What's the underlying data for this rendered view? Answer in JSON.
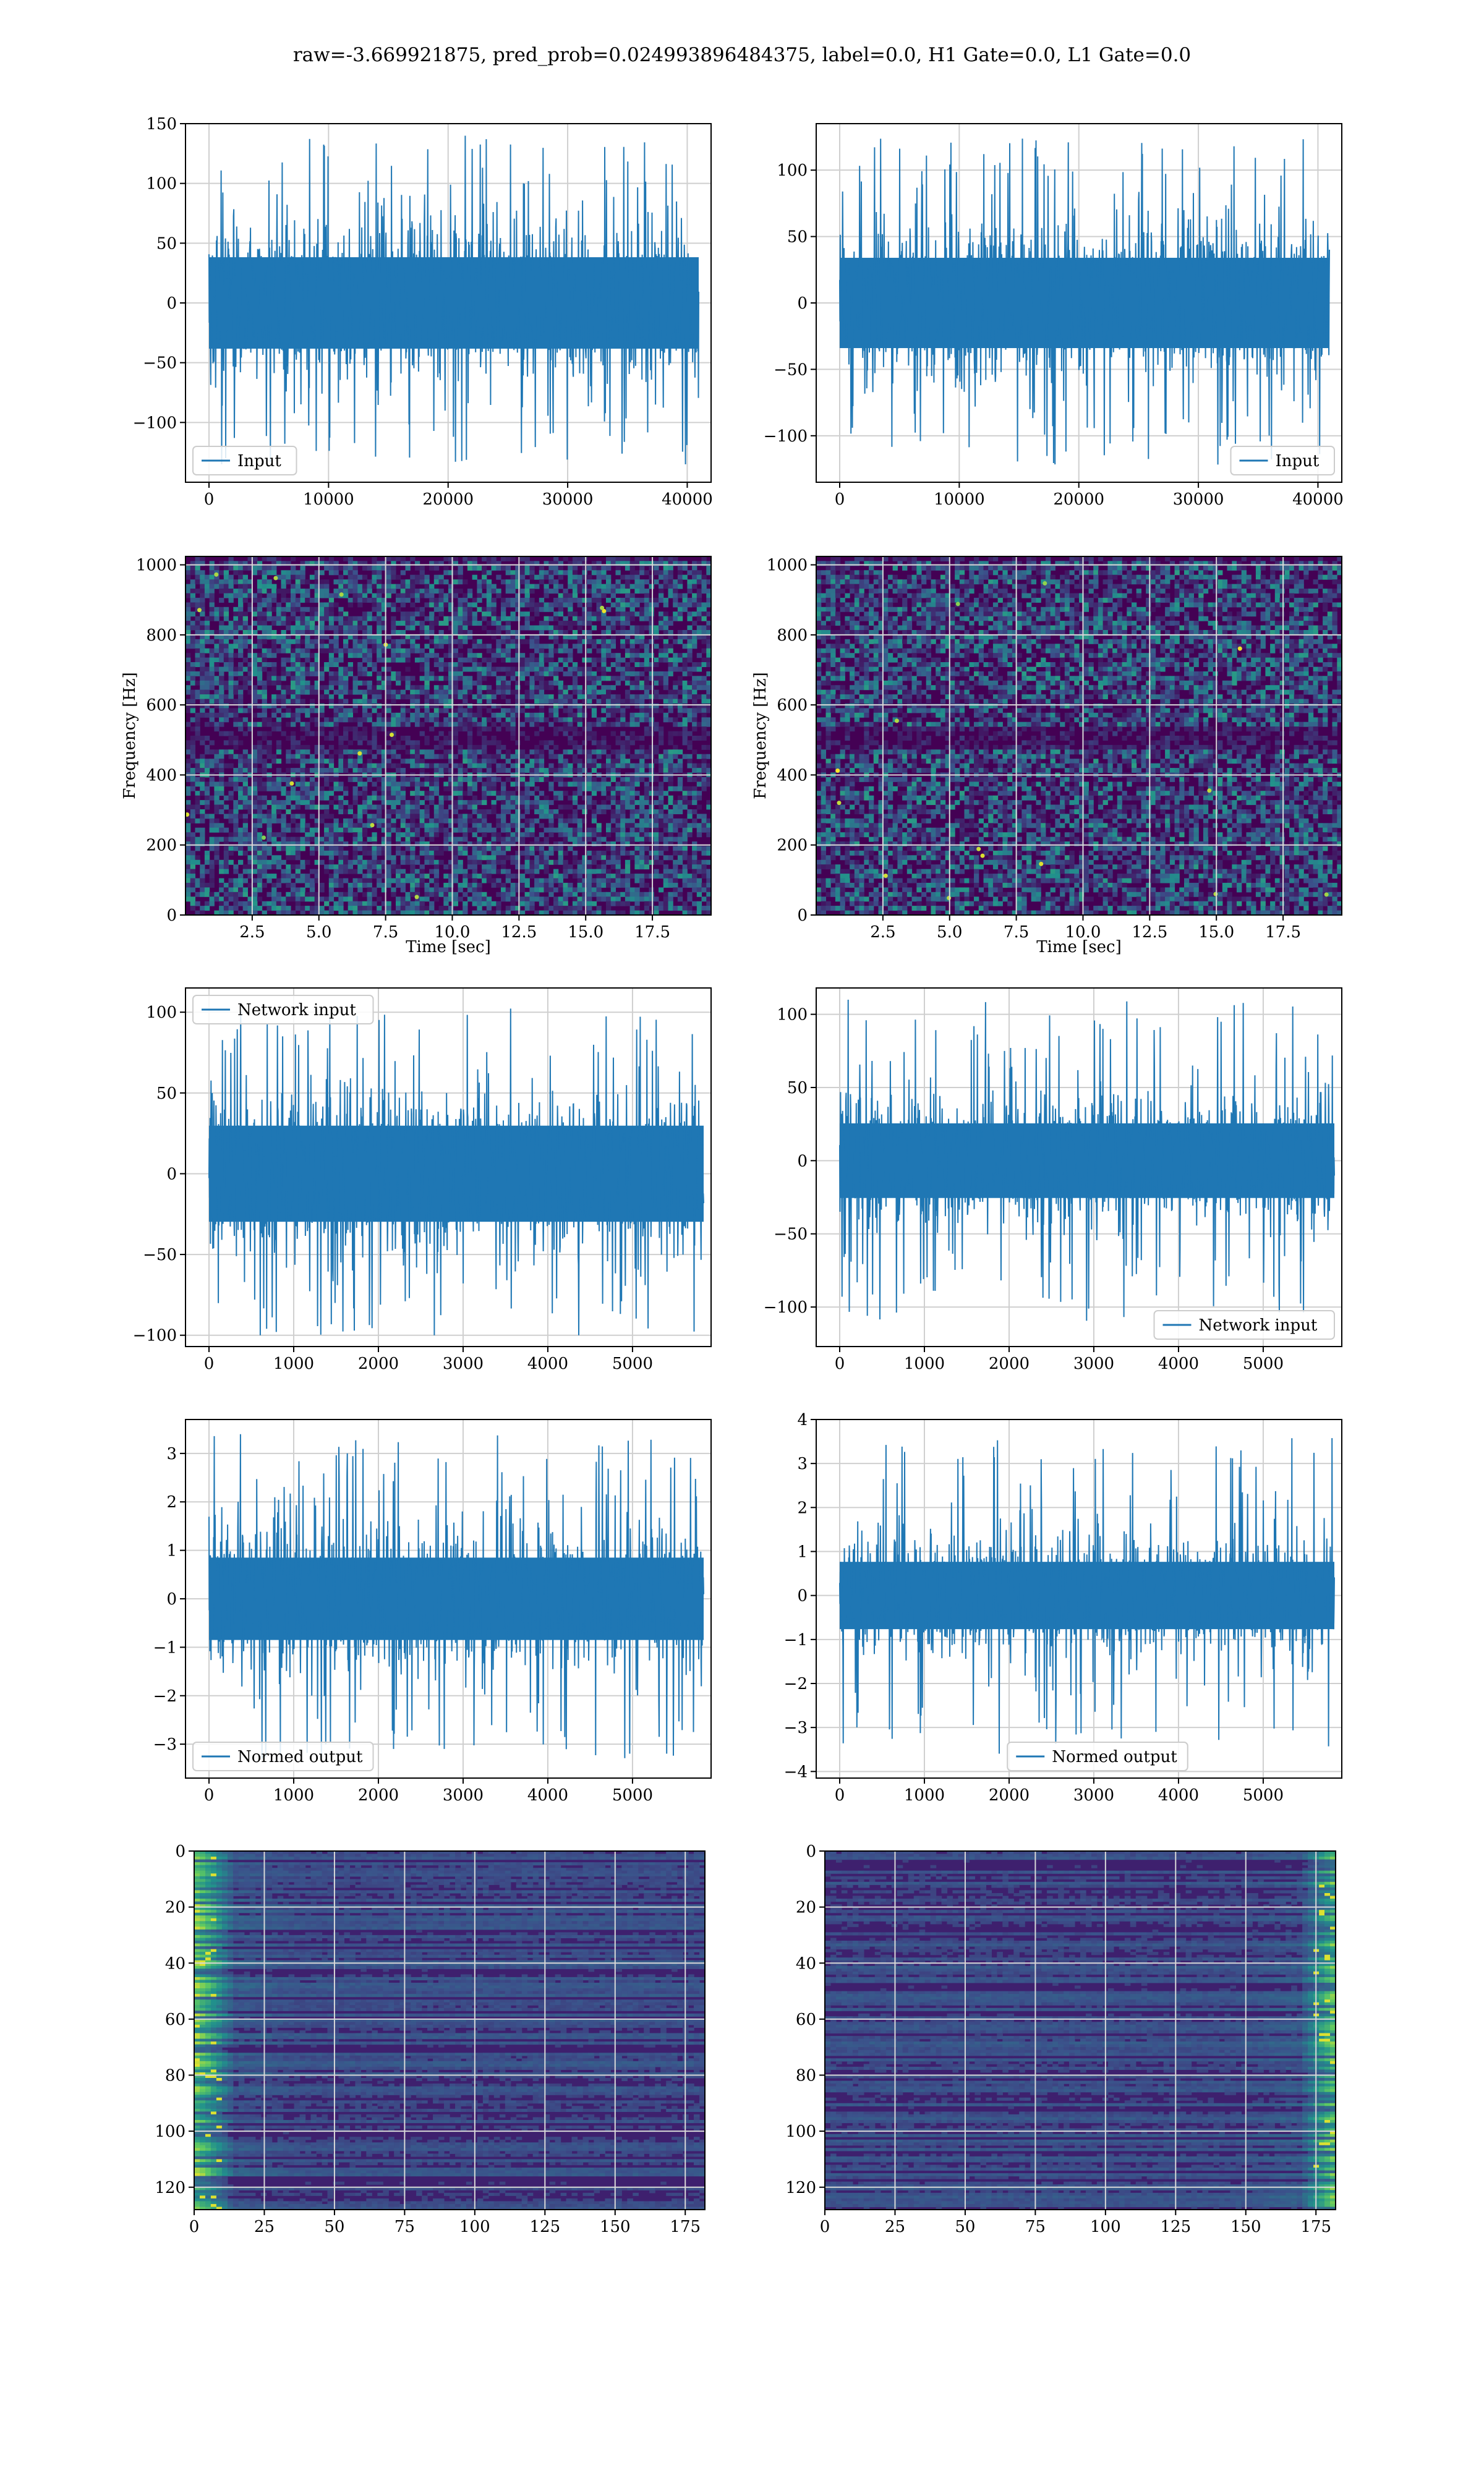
{
  "figure": {
    "suptitle": "raw=-3.669921875, pred_prob=0.024993896484375, label=0.0, H1 Gate=0.0, L1 Gate=0.0"
  },
  "colors": {
    "line": "#1f77b4",
    "viridis_dark": "#440154",
    "viridis_mid": "#21918c",
    "viridis_bright": "#fde725",
    "grid": "#cfcfcf"
  },
  "chart_data": [
    {
      "id": "r0c0",
      "type": "line",
      "x_range": [
        0,
        40960
      ],
      "ylim": [
        -150,
        150
      ],
      "envelope": {
        "core": 45,
        "peak_max": 140,
        "peak_min": -135
      },
      "xticks": [
        0,
        10000,
        20000,
        30000,
        40000
      ],
      "xtick_labels": [
        "0",
        "10000",
        "20000",
        "30000",
        "40000"
      ],
      "yticks": [
        -100,
        -50,
        0,
        50,
        100,
        150
      ],
      "ytick_labels": [
        "−100",
        "−50",
        "0",
        "50",
        "100",
        "150"
      ],
      "legend": "Input",
      "legend_loc": "lower left",
      "grid": true
    },
    {
      "id": "r0c1",
      "type": "line",
      "x_range": [
        0,
        40960
      ],
      "ylim": [
        -135,
        135
      ],
      "envelope": {
        "core": 40,
        "peak_max": 125,
        "peak_min": -125
      },
      "xticks": [
        0,
        10000,
        20000,
        30000,
        40000
      ],
      "xtick_labels": [
        "0",
        "10000",
        "20000",
        "30000",
        "40000"
      ],
      "yticks": [
        -100,
        -50,
        0,
        50,
        100
      ],
      "ytick_labels": [
        "−100",
        "−50",
        "0",
        "50",
        "100"
      ],
      "legend": "Input",
      "legend_loc": "lower right",
      "grid": true
    },
    {
      "id": "r1c0",
      "type": "heatmap",
      "xlim": [
        0,
        19.7
      ],
      "ylim": [
        0,
        1024
      ],
      "xticks": [
        2.5,
        5.0,
        7.5,
        10.0,
        12.5,
        15.0,
        17.5
      ],
      "xtick_labels": [
        "2.5",
        "5.0",
        "7.5",
        "10.0",
        "12.5",
        "15.0",
        "17.5"
      ],
      "yticks": [
        0,
        200,
        400,
        600,
        800,
        1000
      ],
      "ytick_labels": [
        "0",
        "200",
        "400",
        "600",
        "800",
        "1000"
      ],
      "xlabel": "Time [sec]",
      "ylabel": "Frequency [Hz]",
      "grid": true
    },
    {
      "id": "r1c1",
      "type": "heatmap",
      "xlim": [
        0,
        19.7
      ],
      "ylim": [
        0,
        1024
      ],
      "xticks": [
        2.5,
        5.0,
        7.5,
        10.0,
        12.5,
        15.0,
        17.5
      ],
      "xtick_labels": [
        "2.5",
        "5.0",
        "7.5",
        "10.0",
        "12.5",
        "15.0",
        "17.5"
      ],
      "yticks": [
        0,
        200,
        400,
        600,
        800,
        1000
      ],
      "ytick_labels": [
        "0",
        "200",
        "400",
        "600",
        "800",
        "1000"
      ],
      "xlabel": "Time [sec]",
      "ylabel": "Frequency [Hz]",
      "grid": true
    },
    {
      "id": "r2c0",
      "type": "line",
      "x_range": [
        0,
        5840
      ],
      "ylim": [
        -107,
        115
      ],
      "envelope": {
        "core": 35,
        "peak_max": 105,
        "peak_min": -100
      },
      "xticks": [
        0,
        1000,
        2000,
        3000,
        4000,
        5000,
        6000
      ],
      "xtick_labels": [
        "0",
        "1000",
        "2000",
        "3000",
        "4000",
        "5000",
        "6000"
      ],
      "yticks": [
        -100,
        -50,
        0,
        50,
        100
      ],
      "ytick_labels": [
        "−100",
        "−50",
        "0",
        "50",
        "100"
      ],
      "legend": "Network input",
      "legend_loc": "upper left",
      "grid": true
    },
    {
      "id": "r2c1",
      "type": "line",
      "x_range": [
        0,
        5840
      ],
      "ylim": [
        -127,
        118
      ],
      "envelope": {
        "core": 30,
        "peak_max": 110,
        "peak_min": -117
      },
      "xticks": [
        0,
        1000,
        2000,
        3000,
        4000,
        5000,
        6000
      ],
      "xtick_labels": [
        "0",
        "1000",
        "2000",
        "3000",
        "4000",
        "5000",
        "6000"
      ],
      "yticks": [
        -100,
        -50,
        0,
        50,
        100
      ],
      "ytick_labels": [
        "−100",
        "−50",
        "0",
        "50",
        "100"
      ],
      "legend": "Network input",
      "legend_loc": "lower right",
      "grid": true
    },
    {
      "id": "r3c0",
      "type": "line",
      "x_range": [
        0,
        5840
      ],
      "ylim": [
        -3.7,
        3.7
      ],
      "envelope": {
        "core": 1.0,
        "peak_max": 3.4,
        "peak_min": -3.3
      },
      "xticks": [
        0,
        1000,
        2000,
        3000,
        4000,
        5000,
        6000
      ],
      "xtick_labels": [
        "0",
        "1000",
        "2000",
        "3000",
        "4000",
        "5000",
        "6000"
      ],
      "yticks": [
        -3,
        -2,
        -1,
        0,
        1,
        2,
        3
      ],
      "ytick_labels": [
        "−3",
        "−2",
        "−1",
        "0",
        "1",
        "2",
        "3"
      ],
      "legend": "Normed output",
      "legend_loc": "lower left",
      "grid": true
    },
    {
      "id": "r3c1",
      "type": "line",
      "x_range": [
        0,
        5840
      ],
      "ylim": [
        -4.15,
        4.0
      ],
      "envelope": {
        "core": 0.9,
        "peak_max": 3.6,
        "peak_min": -3.8
      },
      "xticks": [
        0,
        1000,
        2000,
        3000,
        4000,
        5000,
        6000
      ],
      "xtick_labels": [
        "0",
        "1000",
        "2000",
        "3000",
        "4000",
        "5000",
        "6000"
      ],
      "yticks": [
        -4,
        -3,
        -2,
        -1,
        0,
        1,
        2,
        3,
        4
      ],
      "ytick_labels": [
        "−4",
        "−3",
        "−2",
        "−1",
        "0",
        "1",
        "2",
        "3",
        "4"
      ],
      "legend": "Normed output",
      "legend_loc": "lower center",
      "grid": true
    },
    {
      "id": "r4c0",
      "type": "heatmap",
      "xlim": [
        0,
        182
      ],
      "ylim_inverted": [
        0,
        128
      ],
      "bright_side": "left",
      "xticks": [
        0,
        25,
        50,
        75,
        100,
        125,
        150,
        175
      ],
      "xtick_labels": [
        "0",
        "25",
        "50",
        "75",
        "100",
        "125",
        "150",
        "175"
      ],
      "yticks": [
        0,
        20,
        40,
        60,
        80,
        100,
        120
      ],
      "ytick_labels": [
        "0",
        "20",
        "40",
        "60",
        "80",
        "100",
        "120"
      ],
      "grid": true
    },
    {
      "id": "r4c1",
      "type": "heatmap",
      "xlim": [
        0,
        182
      ],
      "ylim_inverted": [
        0,
        128
      ],
      "bright_side": "right",
      "xticks": [
        0,
        25,
        50,
        75,
        100,
        125,
        150,
        175
      ],
      "xtick_labels": [
        "0",
        "25",
        "50",
        "75",
        "100",
        "125",
        "150",
        "175"
      ],
      "yticks": [
        0,
        20,
        40,
        60,
        80,
        100,
        120
      ],
      "ytick_labels": [
        "0",
        "20",
        "40",
        "60",
        "80",
        "100",
        "120"
      ],
      "grid": true
    }
  ]
}
